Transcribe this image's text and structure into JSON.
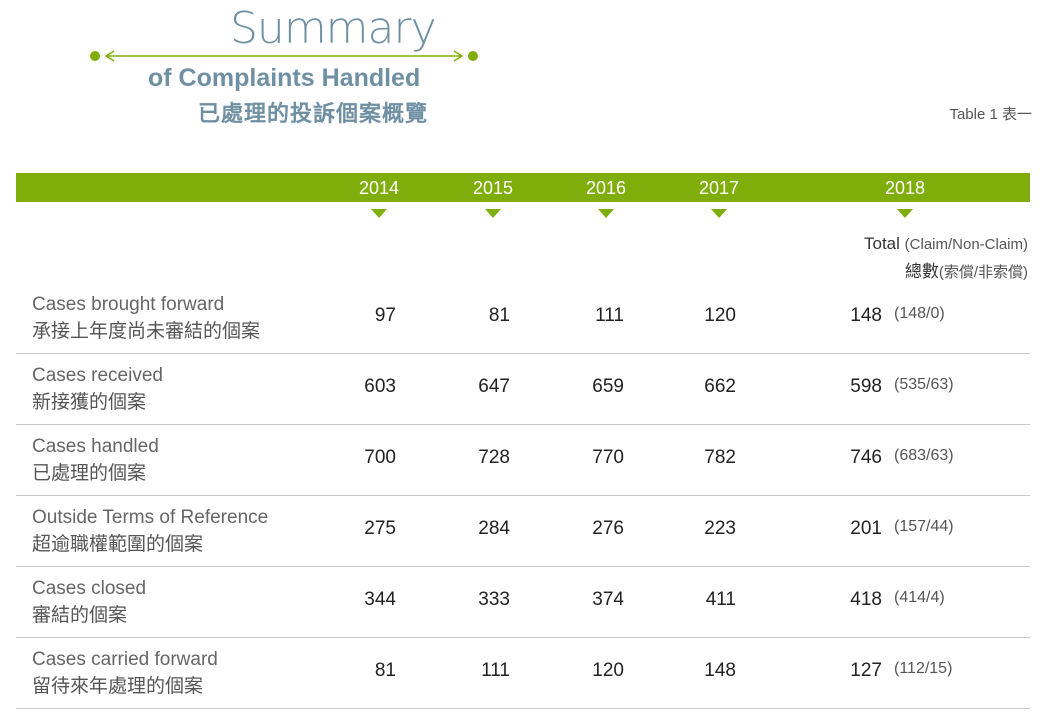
{
  "title": {
    "main": "Summary",
    "subtitle_en": "of Complaints Handled",
    "subtitle_zh": "已處理的投訴個案概覽"
  },
  "table_label": "Table 1  表一",
  "colors": {
    "accent": "#7fae0b",
    "title": "#6f8fa3"
  },
  "columns": [
    "2014",
    "2015",
    "2016",
    "2017",
    "2018"
  ],
  "total_header": {
    "en": "Total",
    "en_sub": "(Claim/Non-Claim)",
    "zh": "總數",
    "zh_sub": "(索償/非索償)"
  },
  "rows": [
    {
      "en": "Cases brought forward",
      "zh": "承接上年度尚未審結的個案",
      "v2014": "97",
      "v2015": "81",
      "v2016": "111",
      "v2017": "120",
      "v2018": "148",
      "split": "(148/0)"
    },
    {
      "en": "Cases received",
      "zh": "新接獲的個案",
      "v2014": "603",
      "v2015": "647",
      "v2016": "659",
      "v2017": "662",
      "v2018": "598",
      "split": "(535/63)"
    },
    {
      "en": "Cases handled",
      "zh": "已處理的個案",
      "v2014": "700",
      "v2015": "728",
      "v2016": "770",
      "v2017": "782",
      "v2018": "746",
      "split": "(683/63)"
    },
    {
      "en": "Outside Terms of Reference",
      "zh": "超逾職權範圍的個案",
      "v2014": "275",
      "v2015": "284",
      "v2016": "276",
      "v2017": "223",
      "v2018": "201",
      "split": "(157/44)"
    },
    {
      "en": "Cases closed",
      "zh": "審結的個案",
      "v2014": "344",
      "v2015": "333",
      "v2016": "374",
      "v2017": "411",
      "v2018": "418",
      "split": "(414/4)"
    },
    {
      "en": "Cases carried forward",
      "zh": "留待來年處理的個案",
      "v2014": "81",
      "v2015": "111",
      "v2016": "120",
      "v2017": "148",
      "v2018": "127",
      "split": "(112/15)"
    }
  ]
}
